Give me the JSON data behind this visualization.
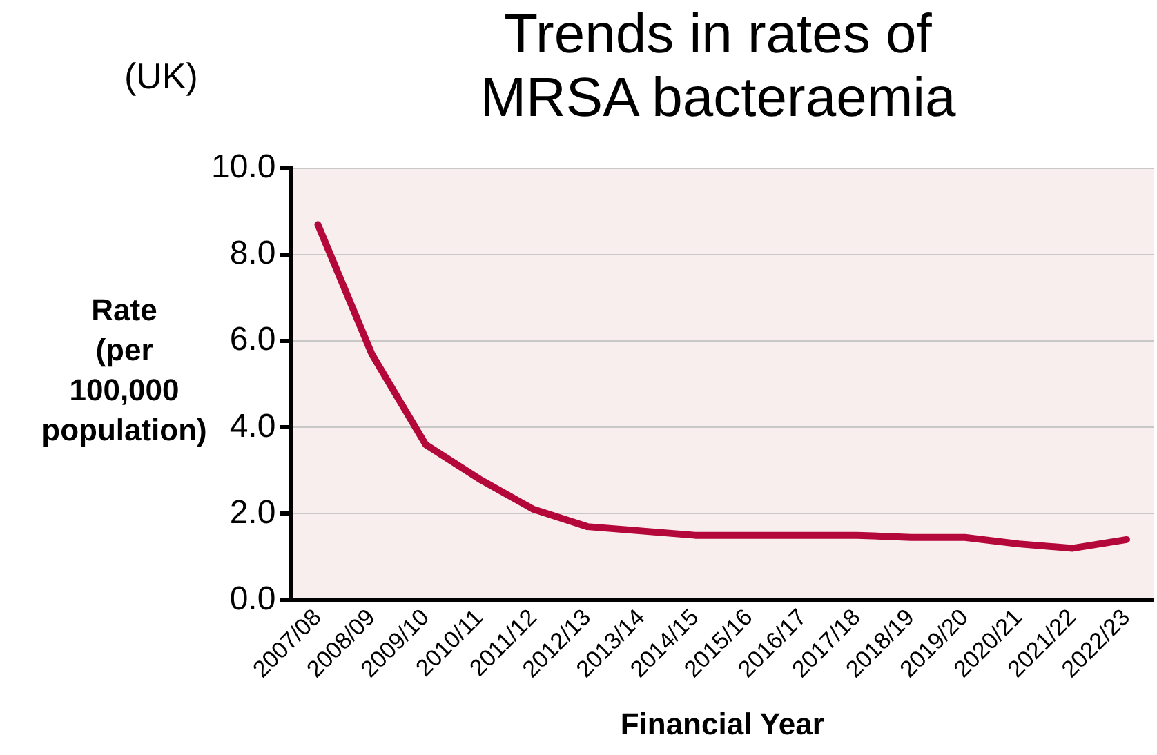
{
  "chart_data": {
    "type": "line",
    "title": "Trends in rates of\nMRSA bacteraemia",
    "subtitle": "(UK)",
    "xlabel": "Financial Year",
    "ylabel": "Rate (per 100,000 population)",
    "categories": [
      "2007/08",
      "2008/09",
      "2009/10",
      "2010/11",
      "2011/12",
      "2012/13",
      "2013/14",
      "2014/15",
      "2015/16",
      "2016/17",
      "2017/18",
      "2018/19",
      "2019/20",
      "2020/21",
      "2021/22",
      "2022/23"
    ],
    "series": [
      {
        "color": "#b5083a",
        "values": [
          8.7,
          5.7,
          3.6,
          2.8,
          2.1,
          1.7,
          1.6,
          1.5,
          1.5,
          1.5,
          1.5,
          1.45,
          1.45,
          1.3,
          1.2,
          1.4
        ]
      }
    ],
    "ylim": [
      0,
      10
    ],
    "yticks": [
      {
        "value": 0,
        "label": "0.0"
      },
      {
        "value": 2,
        "label": "2.0"
      },
      {
        "value": 4,
        "label": "4.0"
      },
      {
        "value": 6,
        "label": "6.0"
      },
      {
        "value": 8,
        "label": "8.0"
      },
      {
        "value": 10,
        "label": "10.0"
      }
    ],
    "grid": "y",
    "legend": false,
    "marker": "none",
    "line_style": "solid"
  }
}
